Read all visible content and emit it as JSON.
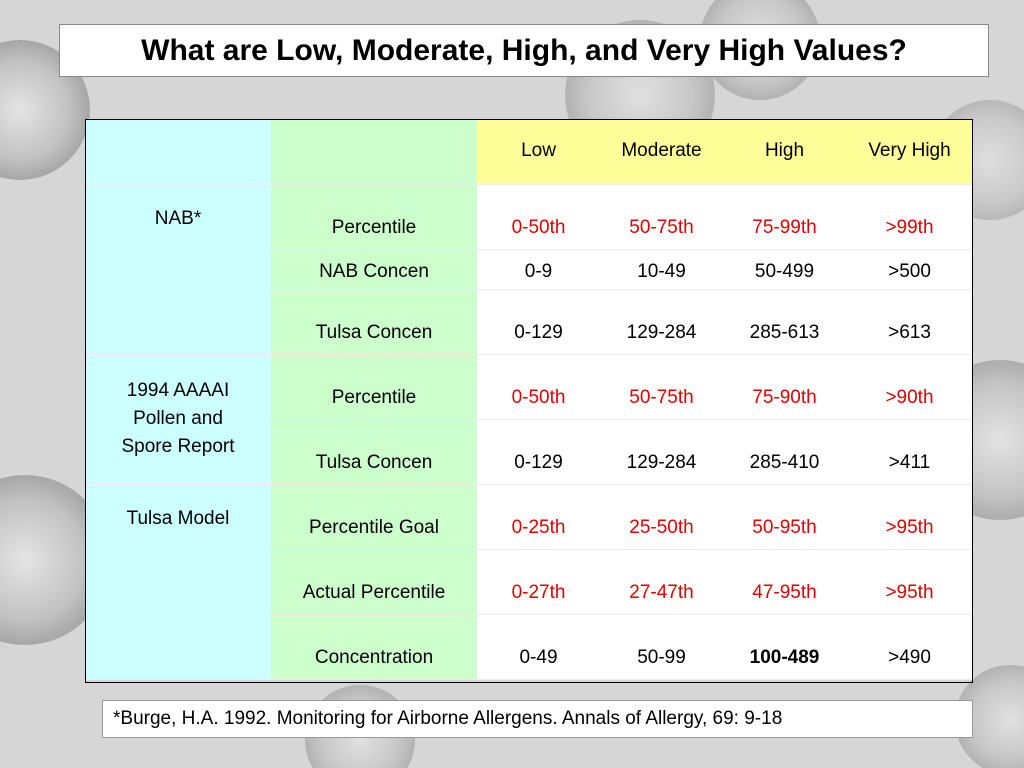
{
  "title": "What are Low, Moderate, High, and Very High Values?",
  "headers": [
    "Low",
    "Moderate",
    "High",
    "Very High"
  ],
  "groups": [
    {
      "name": "NAB*",
      "rows": [
        {
          "measure": "Percentile",
          "values": [
            "0-50th",
            "50-75th",
            "75-99th",
            ">99th"
          ],
          "color": "red"
        },
        {
          "measure": "NAB Concen",
          "values": [
            "0-9",
            "10-49",
            "50-499",
            ">500"
          ],
          "color": "black"
        },
        {
          "measure": "Tulsa Concen",
          "values": [
            "0-129",
            "129-284",
            "285-613",
            ">613"
          ],
          "color": "black"
        }
      ]
    },
    {
      "name": "1994 AAAAI Pollen and Spore Report",
      "name_lines": [
        "1994 AAAAI",
        "Pollen and",
        "Spore Report"
      ],
      "rows": [
        {
          "measure": "Percentile",
          "values": [
            "0-50th",
            "50-75th",
            "75-90th",
            ">90th"
          ],
          "color": "red"
        },
        {
          "measure": "Tulsa Concen",
          "values": [
            "0-129",
            "129-284",
            "285-410",
            ">411"
          ],
          "color": "black"
        }
      ]
    },
    {
      "name": "Tulsa Model",
      "rows": [
        {
          "measure": "Percentile Goal",
          "values": [
            "0-25th",
            "25-50th",
            "50-95th",
            ">95th"
          ],
          "color": "red"
        },
        {
          "measure": "Actual Percentile",
          "values": [
            "0-27th",
            "27-47th",
            "47-95th",
            ">95th"
          ],
          "color": "red"
        },
        {
          "measure": "Concentration",
          "values": [
            "0-49",
            "50-99",
            "100-489",
            ">490"
          ],
          "color": "black",
          "bold_index": 2
        }
      ]
    }
  ],
  "footnote": "*Burge, H.A. 1992. Monitoring for Airborne Allergens. Annals of Allergy, 69: 9-18",
  "colors": {
    "category_bg": "#ccffff",
    "measure_bg": "#ccffcc",
    "header_bg": "#ffff99",
    "highlight_text": "#e00000"
  }
}
